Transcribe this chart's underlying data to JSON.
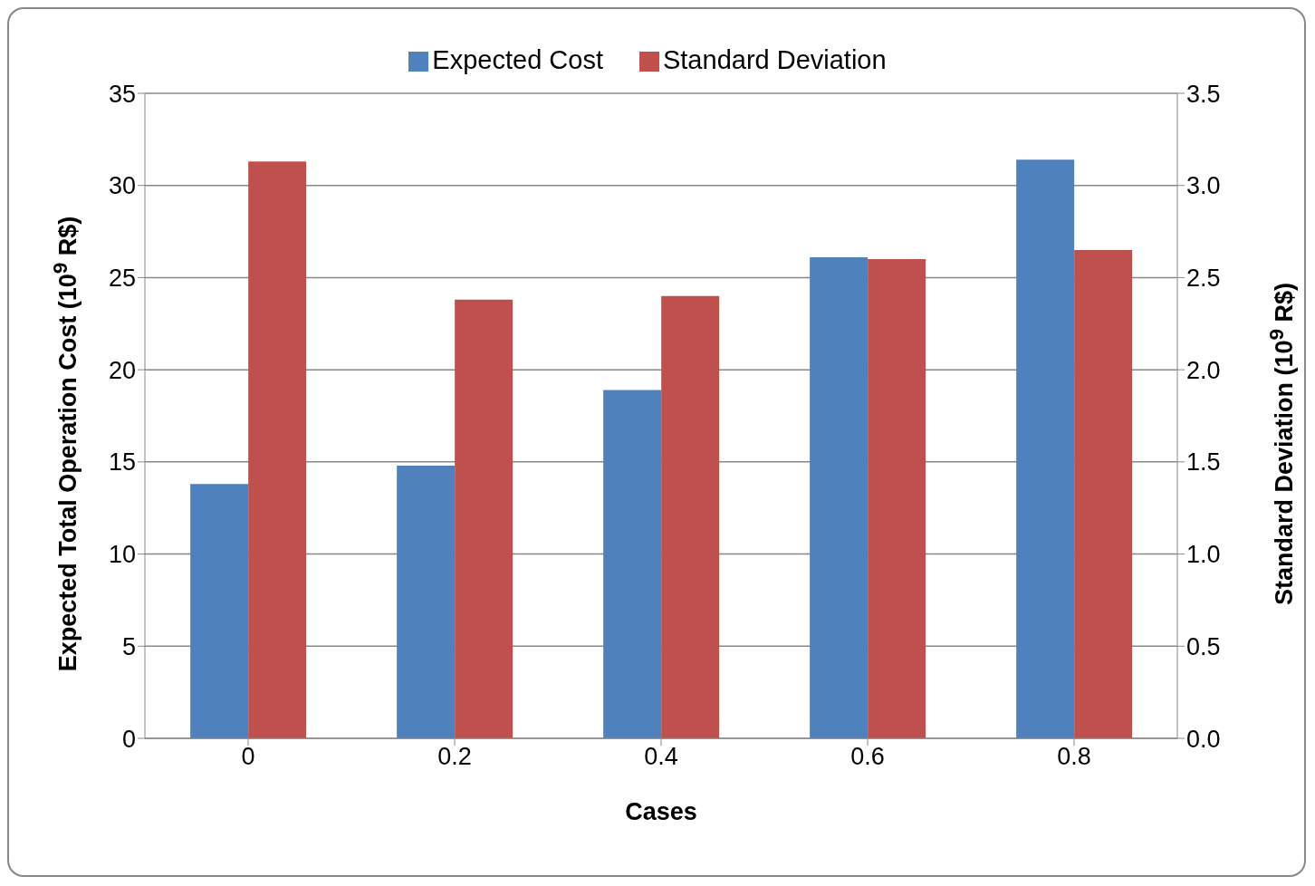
{
  "chart_data": {
    "type": "bar",
    "categories": [
      "0",
      "0.2",
      "0.4",
      "0.6",
      "0.8"
    ],
    "series": [
      {
        "name": "Expected Cost",
        "color": "#4f81bd",
        "values": [
          13.8,
          14.8,
          18.9,
          26.1,
          31.4
        ]
      },
      {
        "name": "Standard Deviation",
        "color": "#c0504d",
        "values": [
          3.13,
          2.38,
          2.4,
          2.6,
          2.65
        ],
        "axis": "y2"
      }
    ],
    "xlabel": "Cases",
    "ylabel": "Expected Total Operation Cost (10$^{9}$ R$)",
    "y2label": "Standard Deviation (10$^{9}$ R$)",
    "ylim": [
      0,
      35
    ],
    "yticks": [
      0,
      5,
      10,
      15,
      20,
      25,
      30,
      35
    ],
    "y2lim": [
      0,
      3.5
    ],
    "y2ticks": [
      {
        "value": 0,
        "label": "0.0"
      },
      {
        "value": 0.5,
        "label": "0.5"
      },
      {
        "value": 1,
        "label": "1.0"
      },
      {
        "value": 1.5,
        "label": "1.5"
      },
      {
        "value": 2,
        "label": "2.0"
      },
      {
        "value": 2.5,
        "label": "2.5"
      },
      {
        "value": 3,
        "label": "3.0"
      },
      {
        "value": 3.5,
        "label": "3.5"
      }
    ],
    "grid": "y",
    "legend": "top"
  }
}
